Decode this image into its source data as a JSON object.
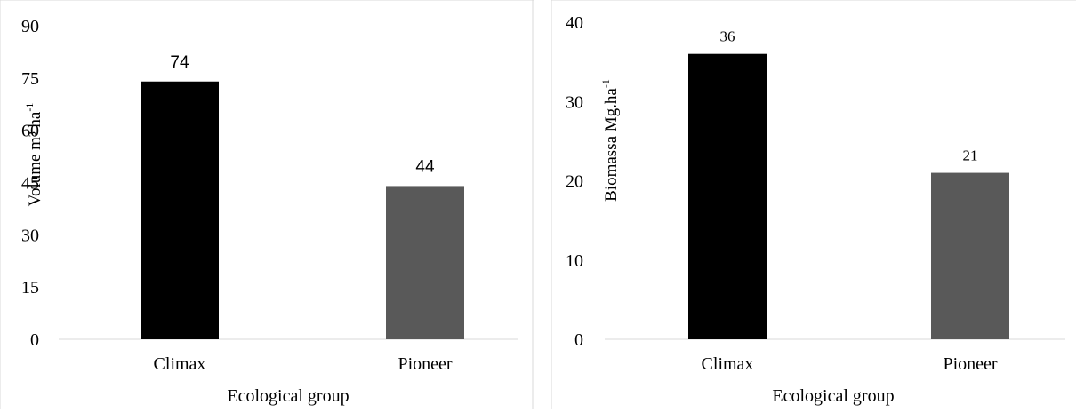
{
  "chart_data": [
    {
      "type": "bar",
      "categories": [
        "Climax",
        "Pioneer"
      ],
      "values": [
        74,
        44
      ],
      "data_labels": [
        "74",
        "44"
      ],
      "colors": [
        "#000000",
        "#595959"
      ],
      "xlabel": "Ecological group",
      "ylabel": "Volume m³ ha",
      "ylabel_sup": "-1",
      "ylim": [
        0,
        90
      ],
      "yticks": [
        "0",
        "15",
        "30",
        "45",
        "60",
        "75",
        "90"
      ],
      "grid": false,
      "legend": "none"
    },
    {
      "type": "bar",
      "categories": [
        "Climax",
        "Pioneer"
      ],
      "values": [
        36,
        21
      ],
      "data_labels": [
        "36",
        "21"
      ],
      "colors": [
        "#000000",
        "#595959"
      ],
      "xlabel": "Ecological group",
      "ylabel": "Biomassa Mg.ha",
      "ylabel_sup": "-1",
      "ylim": [
        0,
        40
      ],
      "yticks": [
        "0",
        "10",
        "20",
        "30",
        "40"
      ],
      "grid": false,
      "legend": "none"
    }
  ]
}
